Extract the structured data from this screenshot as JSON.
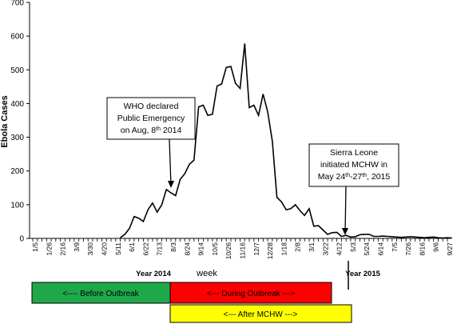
{
  "chart_data": {
    "type": "line",
    "title": "",
    "xlabel": "week",
    "ylabel": "Ebola Cases",
    "ylim": [
      0,
      700
    ],
    "yticks": [
      0,
      100,
      200,
      300,
      400,
      500,
      600,
      700
    ],
    "grid": false,
    "legend": "none",
    "x_tick_labels": [
      "1/5",
      "1/26",
      "2/16",
      "3/9",
      "3/30",
      "4/20",
      "5/11",
      "6/1",
      "6/22",
      "7/13",
      "8/3",
      "8/24",
      "9/14",
      "10/5",
      "10/26",
      "11/16",
      "12/7",
      "12/28",
      "1/18",
      "2/8",
      "3/1",
      "3/22",
      "4/12",
      "5/3",
      "5/24",
      "6/14",
      "7/5",
      "7/26",
      "8/16",
      "9/6",
      "9/27"
    ],
    "series": [
      {
        "color": "#000000",
        "x_start_week": 19,
        "values": [
          2,
          12,
          30,
          65,
          60,
          50,
          85,
          105,
          78,
          100,
          145,
          135,
          127,
          175,
          192,
          220,
          232,
          390,
          395,
          365,
          368,
          452,
          458,
          507,
          510,
          460,
          445,
          578,
          388,
          395,
          365,
          428,
          375,
          288,
          122,
          108,
          85,
          88,
          100,
          82,
          68,
          88,
          36,
          38,
          25,
          12,
          17,
          18,
          6,
          9,
          4,
          5,
          11,
          12,
          12,
          6,
          6,
          7,
          6,
          5,
          4,
          3,
          4,
          5,
          4,
          3,
          2,
          3,
          4,
          2,
          1,
          2,
          1
        ]
      }
    ],
    "year_labels": [
      "Year 2014",
      "Year 2015"
    ],
    "annotations": [
      {
        "id": "who",
        "lines": [
          "WHO declared",
          "Public Emergency"
        ],
        "line3_prefix": "on Aug, 8",
        "line3_sup": "th",
        "line3_suffix": " 2014"
      },
      {
        "id": "sl",
        "lines": [
          "Sierra Leone",
          "initiated MCHW in"
        ],
        "line3_prefix": "May 24",
        "line3_sup": "th",
        "line3_mid": "-27",
        "line3_sup2": "th",
        "line3_suffix": ", 2015"
      }
    ],
    "period_bars": [
      {
        "label": "<---- Before Outbreak",
        "color": "#1fa84a"
      },
      {
        "label": "<--- During Outbreak --->",
        "color": "#ff0000"
      },
      {
        "label": "<--- After MCHW --->",
        "color": "#ffff00"
      }
    ]
  }
}
